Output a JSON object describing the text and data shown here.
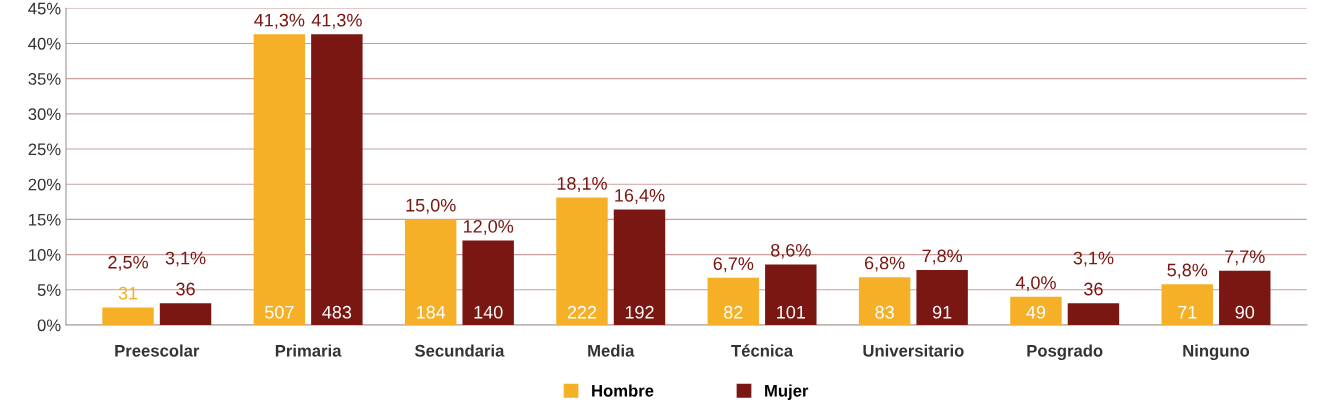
{
  "chart_data": {
    "type": "bar",
    "categories": [
      "Preescolar",
      "Primaria",
      "Secundaria",
      "Media",
      "Técnica",
      "Universitario",
      "Posgrado",
      "Ninguno"
    ],
    "series": [
      {
        "name": "Hombre",
        "color": "#f5b027",
        "values": [
          2.5,
          41.3,
          15.0,
          18.1,
          6.7,
          6.8,
          4.0,
          5.8
        ],
        "value_labels": [
          "2,5%",
          "41,3%",
          "15,0%",
          "18,1%",
          "6,7%",
          "6,8%",
          "4,0%",
          "5,8%"
        ]
      },
      {
        "name": "Mujer",
        "color": "#7a1712",
        "values": [
          3.1,
          41.3,
          12.0,
          16.4,
          8.6,
          7.8,
          3.1,
          7.7
        ],
        "value_labels": [
          "3,1%",
          "41,3%",
          "12,0%",
          "16,4%",
          "8,6%",
          "7,8%",
          "3,1%",
          "7,7%"
        ]
      }
    ],
    "annotations": [
      "31",
      "36",
      "507",
      "483",
      "184",
      "140",
      "222",
      "192",
      "82",
      "101",
      "83",
      "91",
      "49",
      "36",
      "71",
      "90"
    ],
    "ylim": [
      0,
      45
    ],
    "yticks": [
      {
        "value": 0,
        "label": "0%"
      },
      {
        "value": 5,
        "label": "5%"
      },
      {
        "value": 10,
        "label": "10%"
      },
      {
        "value": 15,
        "label": "15%"
      },
      {
        "value": 20,
        "label": "20%"
      },
      {
        "value": 25,
        "label": "25%"
      },
      {
        "value": 30,
        "label": "30%"
      },
      {
        "value": 35,
        "label": "35%"
      },
      {
        "value": 40,
        "label": "40%"
      },
      {
        "value": 45,
        "label": "45%"
      }
    ],
    "grid": "y",
    "legend": "bottom"
  }
}
